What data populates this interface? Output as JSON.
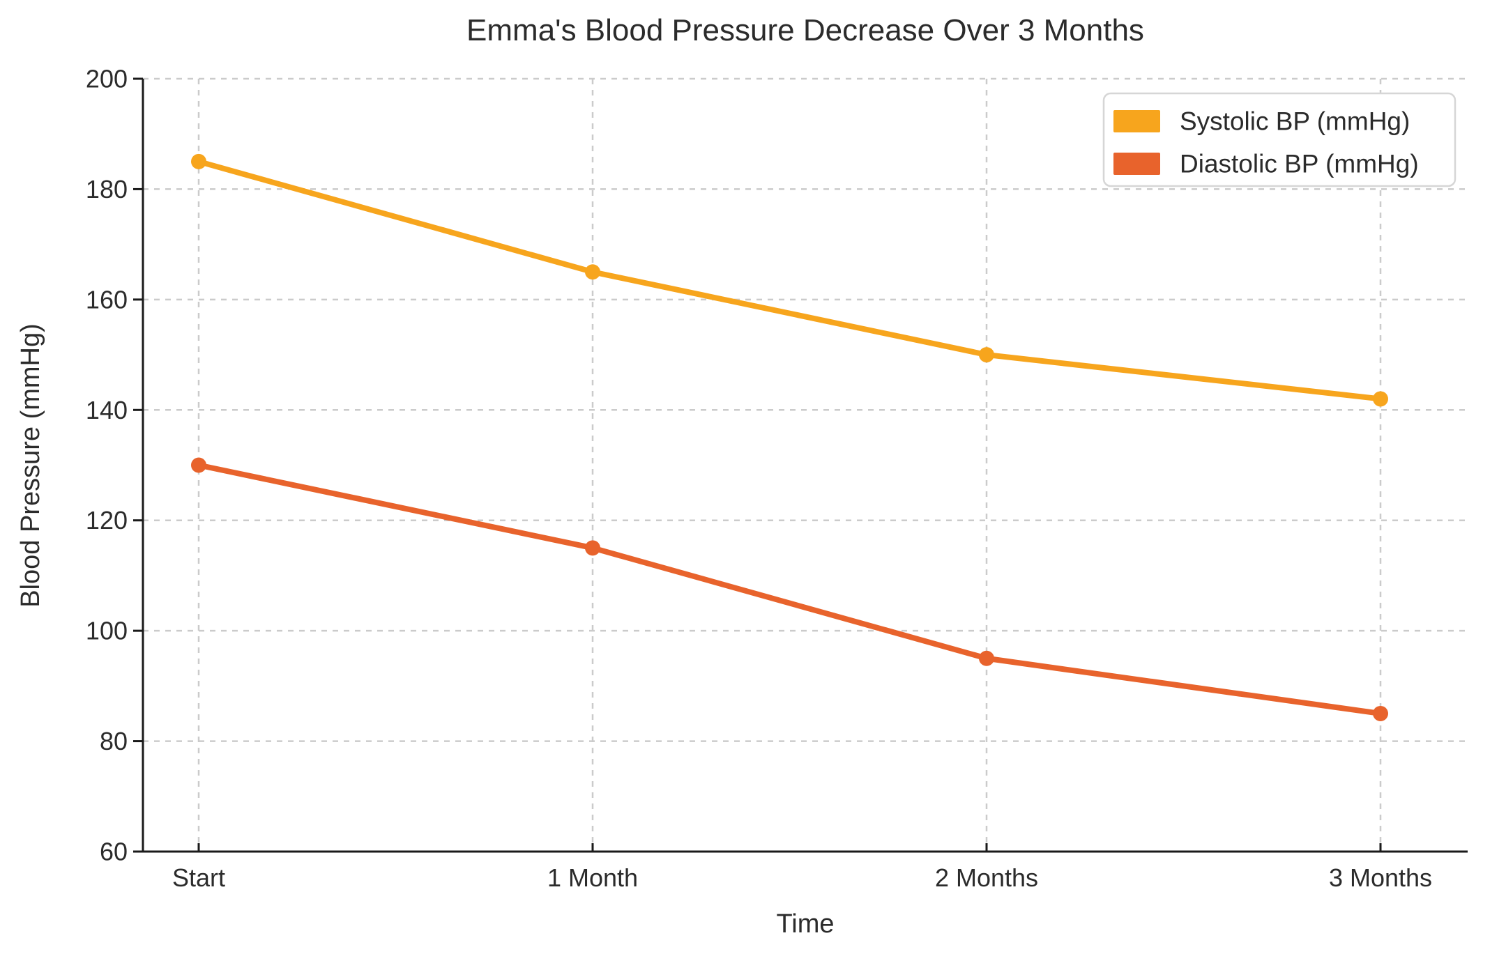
{
  "chart_data": {
    "type": "line",
    "title": "Emma's Blood Pressure Decrease Over 3 Months",
    "xlabel": "Time",
    "ylabel": "Blood Pressure (mmHg)",
    "categories": [
      "Start",
      "1 Month",
      "2 Months",
      "3 Months"
    ],
    "series": [
      {
        "name": "Systolic BP (mmHg)",
        "values": [
          185,
          165,
          150,
          142
        ],
        "color": "#F7A51D"
      },
      {
        "name": "Diastolic BP (mmHg)",
        "values": [
          130,
          115,
          95,
          85
        ],
        "color": "#E8632C"
      }
    ],
    "ylim": [
      60,
      200
    ],
    "yticks": [
      60,
      80,
      100,
      120,
      140,
      160,
      180,
      200
    ],
    "grid": "dashed",
    "legend_position": "top-right"
  },
  "colors": {
    "background": "#ffffff",
    "grid": "#cbcbcb",
    "axis": "#1a1a1a",
    "text": "#2b2b2b",
    "legend_border": "#d6d6d6",
    "legend_fill": "#ffffff"
  }
}
